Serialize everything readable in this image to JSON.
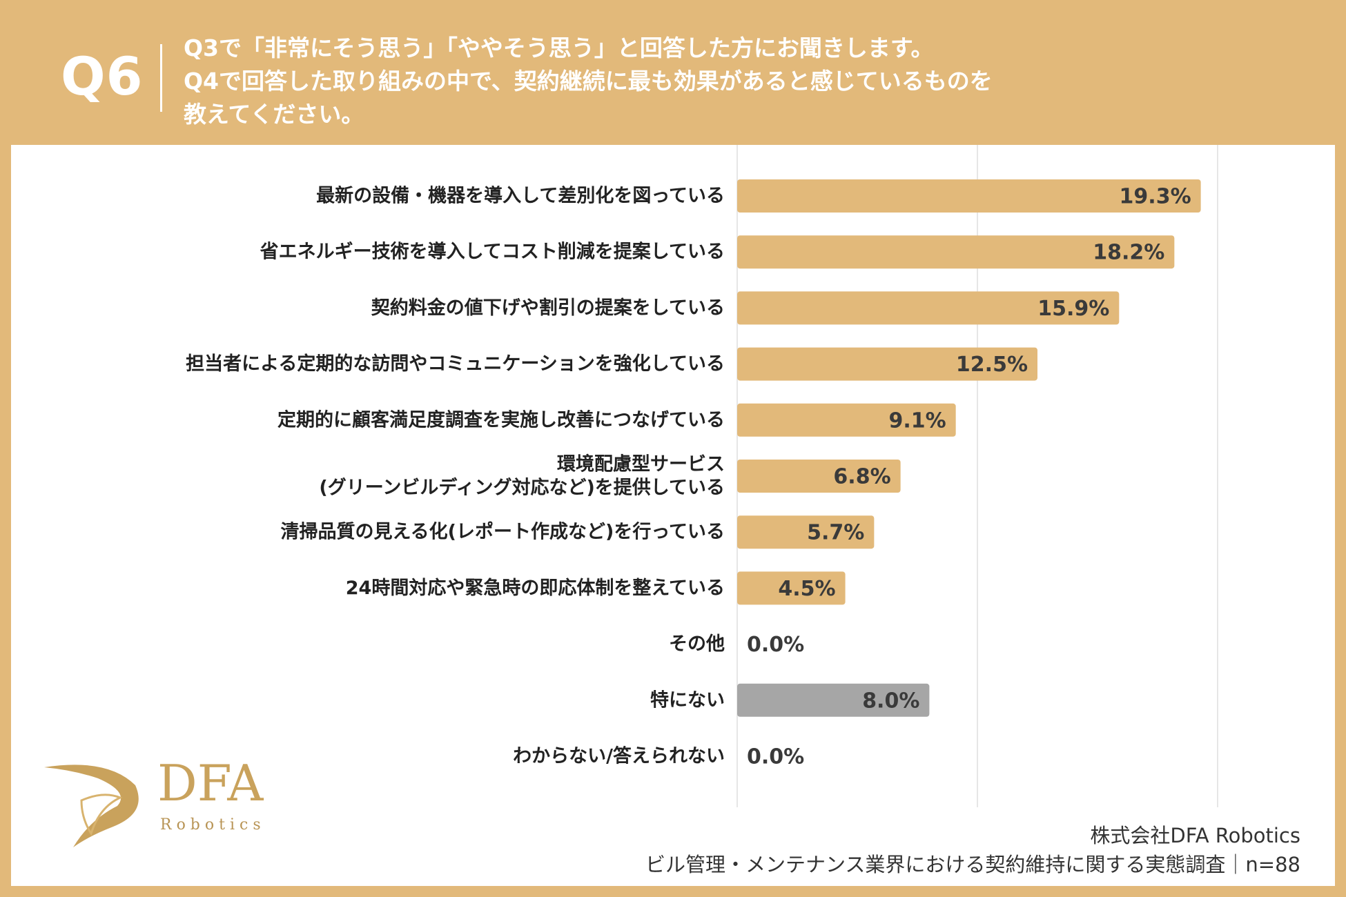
{
  "header": {
    "q_number": "Q6",
    "question_lines": [
      "Q3で「非常にそう思う」「ややそう思う」と回答した方にお聞きします。",
      "Q4で回答した取り組みの中で、契約継続に最も効果があると感じているものを",
      "教えてください。"
    ]
  },
  "colors": {
    "background": "#e2b97a",
    "bar": "#e2b97a",
    "bar_none": "#a6a6a6",
    "grid": "#e6e6e6",
    "text": "#222222"
  },
  "chart_data": {
    "type": "bar",
    "orientation": "horizontal",
    "title": "",
    "xlabel": "",
    "ylabel": "",
    "xlim": [
      0,
      30
    ],
    "grid": true,
    "unit": "%",
    "categories": [
      [
        "最新の設備・機器を導入して差別化を図っている"
      ],
      [
        "省エネルギー技術を導入してコスト削減を提案している"
      ],
      [
        "契約料金の値下げや割引の提案をしている"
      ],
      [
        "担当者による定期的な訪問やコミュニケーションを強化している"
      ],
      [
        "定期的に顧客満足度調査を実施し改善につなげている"
      ],
      [
        "環境配慮型サービス",
        "(グリーンビルディング対応など)を提供している"
      ],
      [
        "清掃品質の見える化(レポート作成など)を行っている"
      ],
      [
        "24時間対応や緊急時の即応体制を整えている"
      ],
      [
        "その他"
      ],
      [
        "特にない"
      ],
      [
        "わからない/答えられない"
      ]
    ],
    "values": [
      19.3,
      18.2,
      15.9,
      12.5,
      9.1,
      6.8,
      5.7,
      4.5,
      0.0,
      8.0,
      0.0
    ],
    "value_labels": [
      "19.3%",
      "18.2%",
      "15.9%",
      "12.5%",
      "9.1%",
      "6.8%",
      "5.7%",
      "4.5%",
      "0.0%",
      "8.0%",
      "0.0%"
    ],
    "highlight_none_index": 9
  },
  "logo": {
    "name": "DFA",
    "subtitle": "Robotics"
  },
  "footer": {
    "company": "株式会社DFA Robotics",
    "survey": "ビル管理・メンテナンス業界における契約維持に関する実態調査｜n=88"
  }
}
